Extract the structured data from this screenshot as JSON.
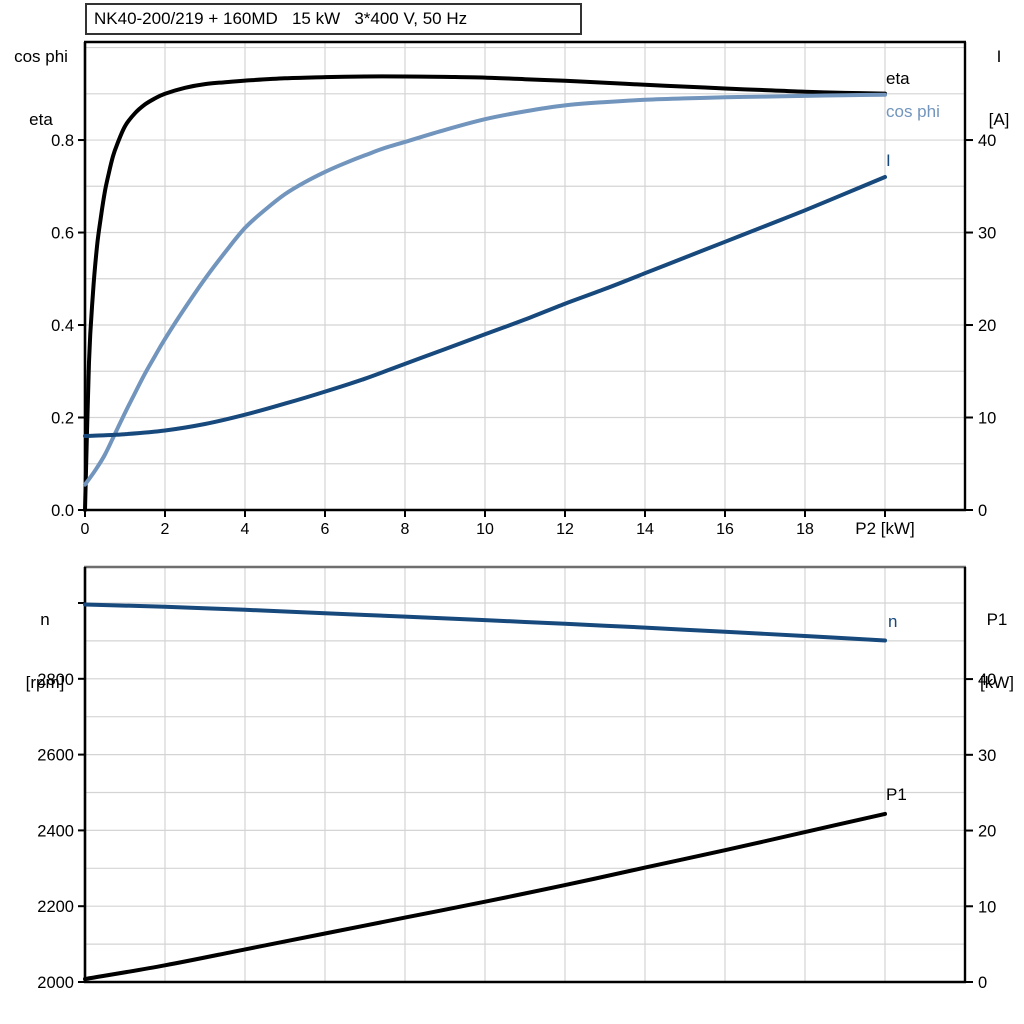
{
  "page": {
    "background": "#ffffff"
  },
  "colors": {
    "eta": "#000000",
    "cos_phi": "#7295bd",
    "current": "#17497d",
    "speed": "#17497d",
    "p1": "#000000",
    "grid": "#d4d4d4",
    "frame": "#000000",
    "frame_top_bottom_panel": "#6e6e6e",
    "text": "#000000"
  },
  "title_box": {
    "text": "NK40-200/219 + 160MD   15 kW   3*400 V, 50 Hz"
  },
  "corner_labels": {
    "top_left_line1": "cos phi",
    "top_left_line2": "eta",
    "top_right_line1": "I",
    "top_right_line2": "[A]",
    "bottom_left_line1": "n",
    "bottom_left_line2": "[rpm]",
    "bottom_right_line1": "P1",
    "bottom_right_line2": "[kW]"
  },
  "chart_data": [
    {
      "id": "top",
      "type": "line",
      "title": "NK40-200/219 + 160MD   15 kW   3*400 V, 50 Hz",
      "xlabel": "P2 [kW]",
      "x_axis": {
        "min": 0,
        "max": 22,
        "grid_step": 2,
        "tick_values": [
          0,
          2,
          4,
          6,
          8,
          10,
          12,
          14,
          16,
          18
        ],
        "tick_labels": [
          "0",
          "2",
          "4",
          "6",
          "8",
          "10",
          "12",
          "14",
          "16",
          "18"
        ],
        "unlabeled_tick": 20,
        "unit_label": "P2 [kW]",
        "unit_label_at": 20
      },
      "y_left": {
        "label": "cos phi / eta",
        "min": 0,
        "max": 1.012,
        "grid_step": 0.1,
        "grid_to": 1.0,
        "tick_values": [
          0,
          0.2,
          0.4,
          0.6,
          0.8
        ],
        "tick_labels": [
          "0.0",
          "0.2",
          "0.4",
          "0.6",
          "0.8"
        ]
      },
      "y_right": {
        "label": "I [A]",
        "min": 0,
        "max": 50.6,
        "tick_values": [
          0,
          10,
          20,
          30,
          40
        ],
        "tick_labels": [
          "0",
          "10",
          "20",
          "30",
          "40"
        ]
      },
      "legend_position": "right-of-curve-ends",
      "grid": true,
      "series": [
        {
          "key": "eta",
          "name": "eta",
          "axis": "left",
          "color_key": "eta",
          "points": [
            [
              0,
              0
            ],
            [
              0.1,
              0.32
            ],
            [
              0.2,
              0.47
            ],
            [
              0.3,
              0.57
            ],
            [
              0.4,
              0.635
            ],
            [
              0.5,
              0.69
            ],
            [
              0.6,
              0.73
            ],
            [
              0.7,
              0.765
            ],
            [
              0.8,
              0.79
            ],
            [
              1,
              0.83
            ],
            [
              1.25,
              0.858
            ],
            [
              1.5,
              0.877
            ],
            [
              1.75,
              0.89
            ],
            [
              2,
              0.9
            ],
            [
              2.5,
              0.913
            ],
            [
              3,
              0.921
            ],
            [
              3.5,
              0.925
            ],
            [
              4,
              0.9285
            ],
            [
              5,
              0.9335
            ],
            [
              6,
              0.936
            ],
            [
              7,
              0.9375
            ],
            [
              8,
              0.9375
            ],
            [
              9,
              0.9365
            ],
            [
              10,
              0.935
            ],
            [
              11,
              0.9315
            ],
            [
              12,
              0.928
            ],
            [
              13,
              0.924
            ],
            [
              14,
              0.9195
            ],
            [
              15,
              0.9155
            ],
            [
              16,
              0.9115
            ],
            [
              17,
              0.908
            ],
            [
              18,
              0.9045
            ],
            [
              19,
              0.902
            ],
            [
              20,
              0.9005
            ]
          ]
        },
        {
          "key": "cos_phi",
          "name": "cos phi",
          "axis": "left",
          "color_key": "cos_phi",
          "points": [
            [
              0,
              0.055
            ],
            [
              0.25,
              0.085
            ],
            [
              0.5,
              0.12
            ],
            [
              0.75,
              0.165
            ],
            [
              1,
              0.21
            ],
            [
              1.25,
              0.253
            ],
            [
              1.5,
              0.295
            ],
            [
              1.75,
              0.333
            ],
            [
              2,
              0.37
            ],
            [
              2.5,
              0.437
            ],
            [
              3,
              0.5
            ],
            [
              3.5,
              0.557
            ],
            [
              4,
              0.61
            ],
            [
              4.5,
              0.649
            ],
            [
              5,
              0.683
            ],
            [
              5.5,
              0.709
            ],
            [
              6,
              0.731
            ],
            [
              6.5,
              0.75
            ],
            [
              7,
              0.767
            ],
            [
              7.5,
              0.783
            ],
            [
              8,
              0.796
            ],
            [
              9,
              0.822
            ],
            [
              10,
              0.845
            ],
            [
              11,
              0.862
            ],
            [
              12,
              0.875
            ],
            [
              13,
              0.882
            ],
            [
              14,
              0.887
            ],
            [
              15,
              0.89
            ],
            [
              16,
              0.8925
            ],
            [
              17,
              0.894
            ],
            [
              18,
              0.8955
            ],
            [
              19,
              0.897
            ],
            [
              20,
              0.898
            ]
          ]
        },
        {
          "key": "I",
          "name": "I",
          "axis": "right",
          "color_key": "current",
          "points": [
            [
              0,
              8.0
            ],
            [
              1,
              8.2
            ],
            [
              2,
              8.6
            ],
            [
              3,
              9.3
            ],
            [
              4,
              10.3
            ],
            [
              5,
              11.5
            ],
            [
              6,
              12.8
            ],
            [
              7,
              14.2
            ],
            [
              8,
              15.8
            ],
            [
              9,
              17.4
            ],
            [
              10,
              19.0
            ],
            [
              11,
              20.6
            ],
            [
              12,
              22.3
            ],
            [
              13,
              23.9
            ],
            [
              14,
              25.6
            ],
            [
              15,
              27.3
            ],
            [
              16,
              29.0
            ],
            [
              17,
              30.7
            ],
            [
              18,
              32.4
            ],
            [
              19,
              34.2
            ],
            [
              20,
              36.0
            ]
          ]
        }
      ]
    },
    {
      "id": "bottom",
      "type": "line",
      "title": "",
      "xlabel": "",
      "x_axis": {
        "min": 0,
        "max": 22,
        "grid_step": 2,
        "tick_values": [],
        "tick_labels": []
      },
      "y_left": {
        "label": "n [rpm]",
        "min": 2000,
        "max": 3095,
        "grid_step": 100,
        "grid_to": 3000,
        "tick_values": [
          2000,
          2200,
          2400,
          2600,
          2800,
          3000
        ],
        "tick_labels": [
          "2000",
          "2200",
          "2400",
          "2600",
          "2800",
          ""
        ]
      },
      "y_right": {
        "label": "P1 [kW]",
        "min": 0,
        "max": 54.8,
        "tick_values": [
          0,
          10,
          20,
          30,
          40
        ],
        "tick_labels": [
          "0",
          "10",
          "20",
          "30",
          "40"
        ]
      },
      "grid": true,
      "series": [
        {
          "key": "n",
          "name": "n",
          "axis": "left",
          "color_key": "speed",
          "points": [
            [
              0,
              2996
            ],
            [
              2,
              2990
            ],
            [
              4,
              2982
            ],
            [
              6,
              2973
            ],
            [
              8,
              2964
            ],
            [
              10,
              2955
            ],
            [
              12,
              2945
            ],
            [
              14,
              2935
            ],
            [
              16,
              2924
            ],
            [
              18,
              2913
            ],
            [
              20,
              2901
            ]
          ]
        },
        {
          "key": "P1",
          "name": "P1",
          "axis": "right",
          "color_key": "p1",
          "points": [
            [
              0,
              0.4
            ],
            [
              2,
              2.2
            ],
            [
              4,
              4.3
            ],
            [
              6,
              6.4
            ],
            [
              8,
              8.5
            ],
            [
              10,
              10.6
            ],
            [
              12,
              12.8
            ],
            [
              14,
              15.1
            ],
            [
              16,
              17.4
            ],
            [
              18,
              19.8
            ],
            [
              20,
              22.2
            ]
          ]
        }
      ]
    }
  ]
}
